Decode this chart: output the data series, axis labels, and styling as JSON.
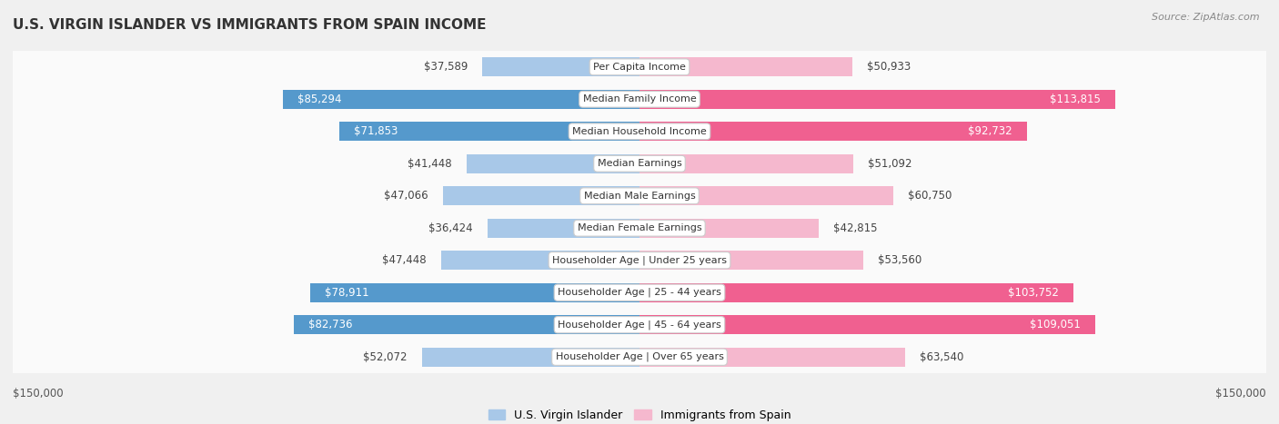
{
  "title": "U.S. VIRGIN ISLANDER VS IMMIGRANTS FROM SPAIN INCOME",
  "source": "Source: ZipAtlas.com",
  "categories": [
    "Per Capita Income",
    "Median Family Income",
    "Median Household Income",
    "Median Earnings",
    "Median Male Earnings",
    "Median Female Earnings",
    "Householder Age | Under 25 years",
    "Householder Age | 25 - 44 years",
    "Householder Age | 45 - 64 years",
    "Householder Age | Over 65 years"
  ],
  "left_values": [
    37589,
    85294,
    71853,
    41448,
    47066,
    36424,
    47448,
    78911,
    82736,
    52072
  ],
  "right_values": [
    50933,
    113815,
    92732,
    51092,
    60750,
    42815,
    53560,
    103752,
    109051,
    63540
  ],
  "left_labels": [
    "$37,589",
    "$85,294",
    "$71,853",
    "$41,448",
    "$47,066",
    "$36,424",
    "$47,448",
    "$78,911",
    "$82,736",
    "$52,072"
  ],
  "right_labels": [
    "$50,933",
    "$113,815",
    "$92,732",
    "$51,092",
    "$60,750",
    "$42,815",
    "$53,560",
    "$103,752",
    "$109,051",
    "$63,540"
  ],
  "max_value": 150000,
  "left_color_light": "#a8c8e8",
  "left_color_dark": "#5599cc",
  "right_color_light": "#f5b8ce",
  "right_color_dark": "#f06090",
  "dark_threshold": 70000,
  "background_color": "#f0f0f0",
  "row_bg_color": "#fafafa",
  "row_border_color": "#d0d0d8",
  "legend_left": "U.S. Virgin Islander",
  "legend_right": "Immigrants from Spain",
  "title_fontsize": 11,
  "source_fontsize": 8,
  "bar_label_fontsize": 8.5,
  "category_fontsize": 8
}
